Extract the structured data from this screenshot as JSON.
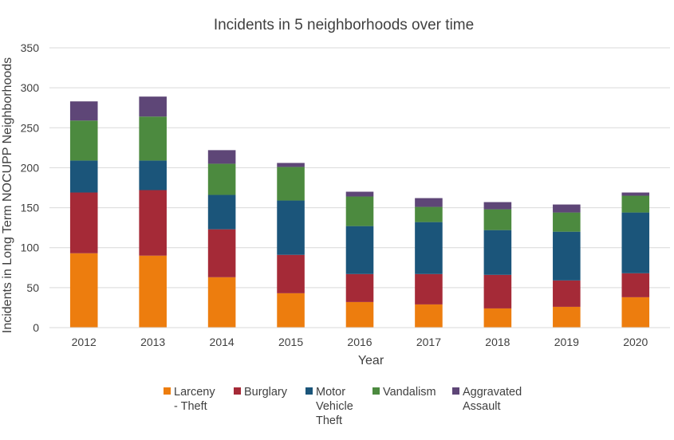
{
  "chart_data": {
    "type": "bar",
    "stacked": true,
    "title": "Incidents in 5 neighborhoods  over time",
    "xlabel": "Year",
    "ylabel": "Incidents in Long Term NOCUPP Neighborhoods",
    "ylim": [
      0,
      350
    ],
    "yticks": [
      0,
      50,
      100,
      150,
      200,
      250,
      300,
      350
    ],
    "grid": true,
    "legend_position": "bottom",
    "categories": [
      "2012",
      "2013",
      "2014",
      "2015",
      "2016",
      "2017",
      "2018",
      "2019",
      "2020"
    ],
    "series": [
      {
        "name": "Larceny - Theft",
        "legend_lines": [
          "Larceny",
          "- Theft"
        ],
        "color": "#ED7D0E",
        "values": [
          93,
          90,
          63,
          43,
          32,
          29,
          24,
          26,
          38
        ]
      },
      {
        "name": "Burglary",
        "legend_lines": [
          "Burglary"
        ],
        "color": "#A52A37",
        "values": [
          76,
          82,
          60,
          48,
          35,
          38,
          42,
          33,
          30
        ]
      },
      {
        "name": "Motor Vehicle Theft",
        "legend_lines": [
          "Motor",
          "Vehicle",
          "Theft"
        ],
        "color": "#1B557A",
        "values": [
          40,
          37,
          43,
          68,
          60,
          65,
          56,
          61,
          76
        ]
      },
      {
        "name": "Vandalism",
        "legend_lines": [
          "Vandalism"
        ],
        "color": "#4C8A3F",
        "values": [
          50,
          55,
          39,
          42,
          37,
          19,
          26,
          24,
          21
        ]
      },
      {
        "name": "Aggravated Assault",
        "legend_lines": [
          "Aggravated",
          "Assault"
        ],
        "color": "#5E4677",
        "values": [
          24,
          25,
          17,
          5,
          6,
          11,
          9,
          10,
          4
        ]
      }
    ]
  }
}
